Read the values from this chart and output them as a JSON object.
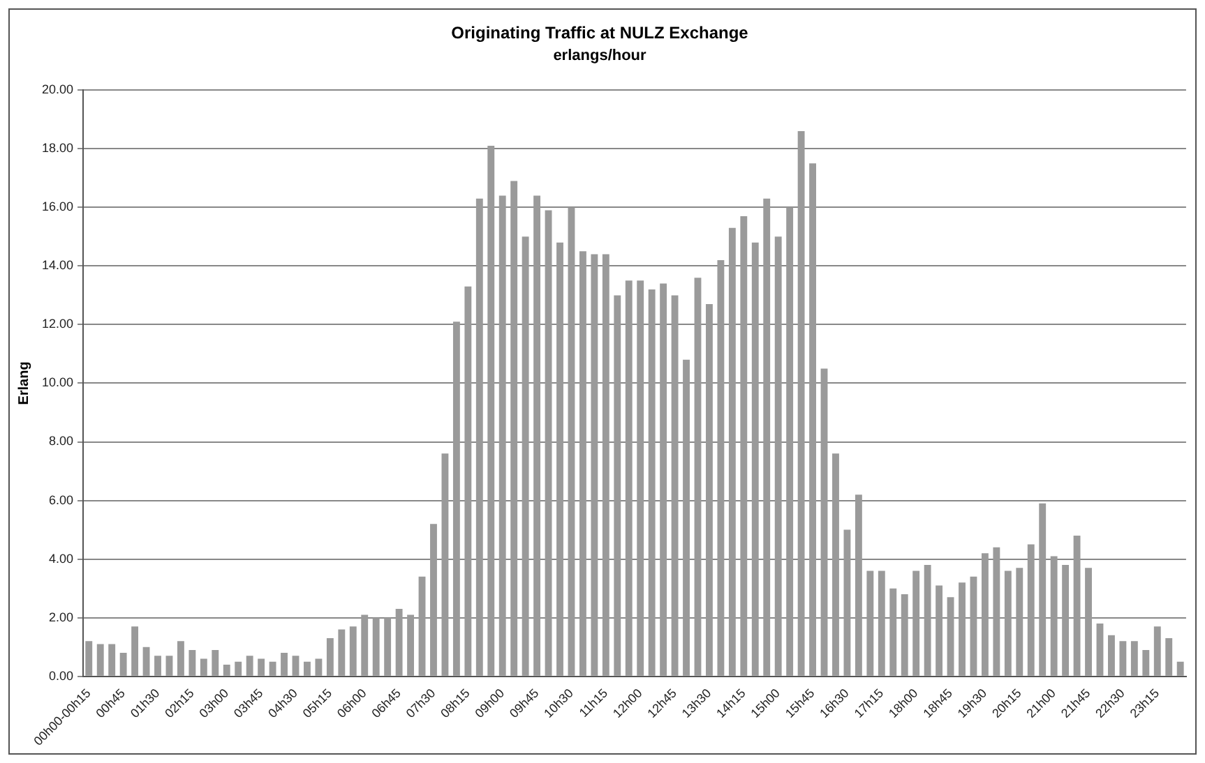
{
  "chart_data": {
    "type": "bar",
    "title": "Originating Traffic at NULZ Exchange",
    "subtitle": "erlangs/hour",
    "ylabel": "Erlang",
    "categories": [
      "00h00-00h15",
      null,
      null,
      "00h45",
      null,
      null,
      "01h30",
      null,
      null,
      "02h15",
      null,
      null,
      "03h00",
      null,
      null,
      "03h45",
      null,
      null,
      "04h30",
      null,
      null,
      "05h15",
      null,
      null,
      "06h00",
      null,
      null,
      "06h45",
      null,
      null,
      "07h30",
      null,
      null,
      "08h15",
      null,
      null,
      "09h00",
      null,
      null,
      "09h45",
      null,
      null,
      "10h30",
      null,
      null,
      "11h15",
      null,
      null,
      "12h00",
      null,
      null,
      "12h45",
      null,
      null,
      "13h30",
      null,
      null,
      "14h15",
      null,
      null,
      "15h00",
      null,
      null,
      "15h45",
      null,
      null,
      "16h30",
      null,
      null,
      "17h15",
      null,
      null,
      "18h00",
      null,
      null,
      "18h45",
      null,
      null,
      "19h30",
      null,
      null,
      "20h15",
      null,
      null,
      "21h00",
      null,
      null,
      "21h45",
      null,
      null,
      "22h30",
      null,
      null,
      "23h15",
      null,
      null
    ],
    "values": [
      1.2,
      1.1,
      1.1,
      0.8,
      1.7,
      1.0,
      0.7,
      0.7,
      1.2,
      0.9,
      0.6,
      0.9,
      0.4,
      0.5,
      0.7,
      0.6,
      0.5,
      0.8,
      0.7,
      0.5,
      0.6,
      1.3,
      1.6,
      1.7,
      2.1,
      2.0,
      2.0,
      2.3,
      2.1,
      3.4,
      5.2,
      7.6,
      12.1,
      13.3,
      16.3,
      18.1,
      16.4,
      16.9,
      15.0,
      16.4,
      15.9,
      14.8,
      16.0,
      14.5,
      14.4,
      14.4,
      13.0,
      13.5,
      13.5,
      13.2,
      13.4,
      13.0,
      10.8,
      13.6,
      12.7,
      14.2,
      15.3,
      15.7,
      14.8,
      16.3,
      15.0,
      16.0,
      18.6,
      17.5,
      10.5,
      7.6,
      5.0,
      6.2,
      3.6,
      3.6,
      3.0,
      2.8,
      3.6,
      3.8,
      3.1,
      2.7,
      3.2,
      3.4,
      4.2,
      4.4,
      3.6,
      3.7,
      4.5,
      5.9,
      4.1,
      3.8,
      4.8,
      3.7,
      1.8,
      1.4,
      1.2,
      1.2,
      0.9,
      1.7,
      1.3,
      0.5
    ],
    "color": "#9a9a9a",
    "ylim": [
      0,
      20
    ],
    "yticks": [
      {
        "value": 0,
        "label": "0.00"
      },
      {
        "value": 2,
        "label": "2.00"
      },
      {
        "value": 4,
        "label": "4.00"
      },
      {
        "value": 6,
        "label": "6.00"
      },
      {
        "value": 8,
        "label": "8.00"
      },
      {
        "value": 10,
        "label": "10.00"
      },
      {
        "value": 12,
        "label": "12.00"
      },
      {
        "value": 14,
        "label": "14.00"
      },
      {
        "value": 16,
        "label": "16.00"
      },
      {
        "value": 18,
        "label": "18.00"
      },
      {
        "value": 20,
        "label": "20.00"
      }
    ],
    "grid": "y",
    "legend": false
  }
}
